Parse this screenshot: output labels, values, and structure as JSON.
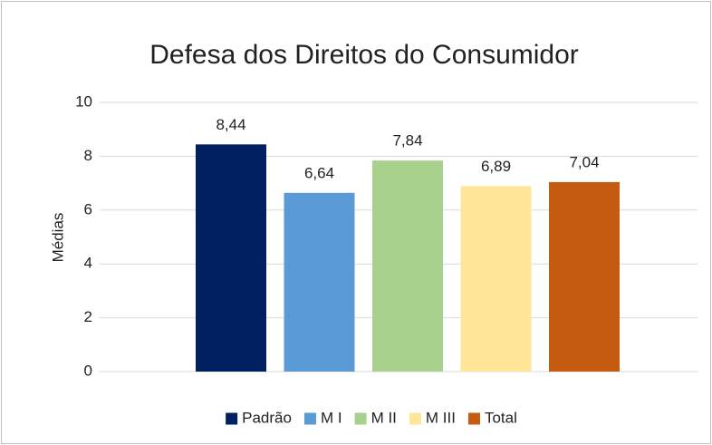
{
  "chart_data": {
    "type": "bar",
    "title": "Defesa dos Direitos do Consumidor",
    "ylabel": "Médias",
    "categories": [
      null
    ],
    "series": [
      {
        "name": "Padrão",
        "color": "#002060",
        "values": [
          8.44
        ],
        "value_labels": [
          "8,44"
        ]
      },
      {
        "name": "M I",
        "color": "#5b9bd5",
        "values": [
          6.64
        ],
        "value_labels": [
          "6,64"
        ]
      },
      {
        "name": "M II",
        "color": "#a9d18e",
        "values": [
          7.84
        ],
        "value_labels": [
          "7,84"
        ]
      },
      {
        "name": "M III",
        "color": "#ffe699",
        "values": [
          6.89
        ],
        "value_labels": [
          "6,89"
        ]
      },
      {
        "name": "Total",
        "color": "#c55a11",
        "values": [
          7.04
        ],
        "value_labels": [
          "7,04"
        ]
      }
    ],
    "ylim": [
      0,
      10
    ],
    "yticks": [
      0,
      2,
      4,
      6,
      8,
      10
    ],
    "grid": true,
    "legend": "bottom"
  }
}
